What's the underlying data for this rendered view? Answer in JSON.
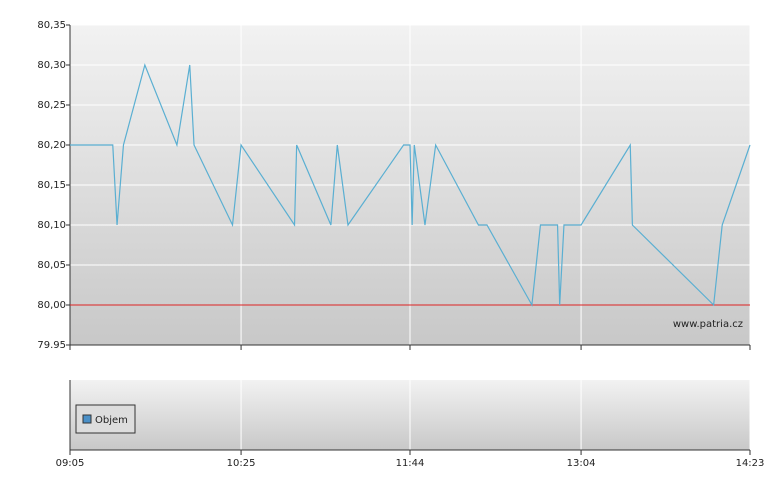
{
  "chart_data": {
    "type": "line",
    "x": [
      545,
      565,
      567,
      570,
      580,
      595,
      601,
      603,
      621,
      625,
      650,
      651,
      667,
      670,
      675,
      701,
      704,
      705,
      706,
      711,
      716,
      736,
      740,
      761,
      765,
      773,
      774,
      776,
      784,
      807,
      808,
      846,
      850,
      863
    ],
    "series": [
      {
        "color": "#5aafd2",
        "values": [
          80.2,
          80.2,
          80.1,
          80.2,
          80.3,
          80.2,
          80.3,
          80.2,
          80.1,
          80.2,
          80.1,
          80.2,
          80.1,
          80.2,
          80.1,
          80.2,
          80.2,
          80.1,
          80.2,
          80.1,
          80.2,
          80.1,
          80.1,
          80.0,
          80.1,
          80.1,
          80.0,
          80.1,
          80.1,
          80.2,
          80.1,
          80.0,
          80.1,
          80.2
        ]
      }
    ],
    "xlim": [
      545,
      863
    ],
    "xticks": [
      {
        "value": 545,
        "label": "09:05"
      },
      {
        "value": 625,
        "label": "10:25"
      },
      {
        "value": 704,
        "label": "11:44"
      },
      {
        "value": 784,
        "label": "13:04"
      },
      {
        "value": 863,
        "label": "14:23"
      }
    ],
    "ylim": [
      79.95,
      80.35
    ],
    "yticks": [
      {
        "value": 79.95,
        "label": "79.95"
      },
      {
        "value": 80.0,
        "label": "80,00"
      },
      {
        "value": 80.05,
        "label": "80,05"
      },
      {
        "value": 80.1,
        "label": "80,10"
      },
      {
        "value": 80.15,
        "label": "80,15"
      },
      {
        "value": 80.2,
        "label": "80,20"
      },
      {
        "value": 80.25,
        "label": "80,25"
      },
      {
        "value": 80.3,
        "label": "80,30"
      },
      {
        "value": 80.35,
        "label": "80,35"
      }
    ],
    "reference_line": 80.0,
    "reference_color": "#dd2222",
    "grid": true,
    "watermark": "www.patria.cz",
    "volume_legend": "Objem",
    "volume_color": "#4a90c8"
  }
}
